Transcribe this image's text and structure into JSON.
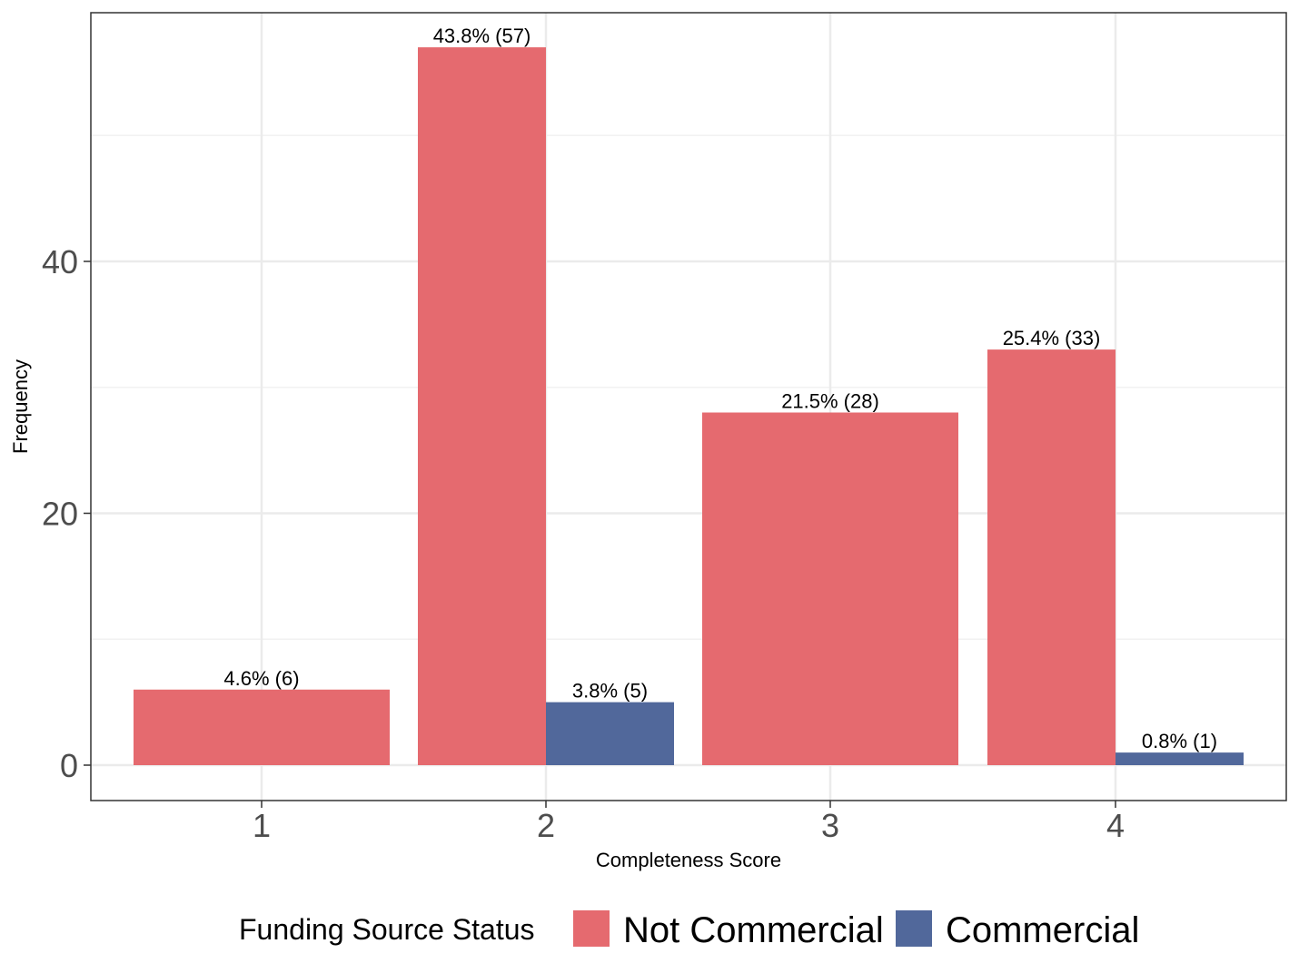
{
  "chart_data": {
    "type": "bar",
    "xlabel": "Completeness Score",
    "ylabel": "Frequency",
    "categories": [
      "1",
      "2",
      "3",
      "4"
    ],
    "ylim": [
      -2.8,
      57.5
    ],
    "yticks": [
      0,
      20,
      40
    ],
    "grid": true,
    "legend": {
      "title": "Funding Source Status",
      "position": "bottom"
    },
    "series": [
      {
        "name": "Not Commercial",
        "color": "#E56A6F",
        "values": [
          6,
          57,
          28,
          33
        ],
        "labels": [
          "4.6% (6)",
          "43.8% (57)",
          "21.5% (28)",
          "25.4% (33)"
        ]
      },
      {
        "name": "Commercial",
        "color": "#51689B",
        "values": [
          null,
          5,
          null,
          1
        ],
        "labels": [
          null,
          "3.8% (5)",
          null,
          "0.8% (1)"
        ]
      }
    ]
  }
}
